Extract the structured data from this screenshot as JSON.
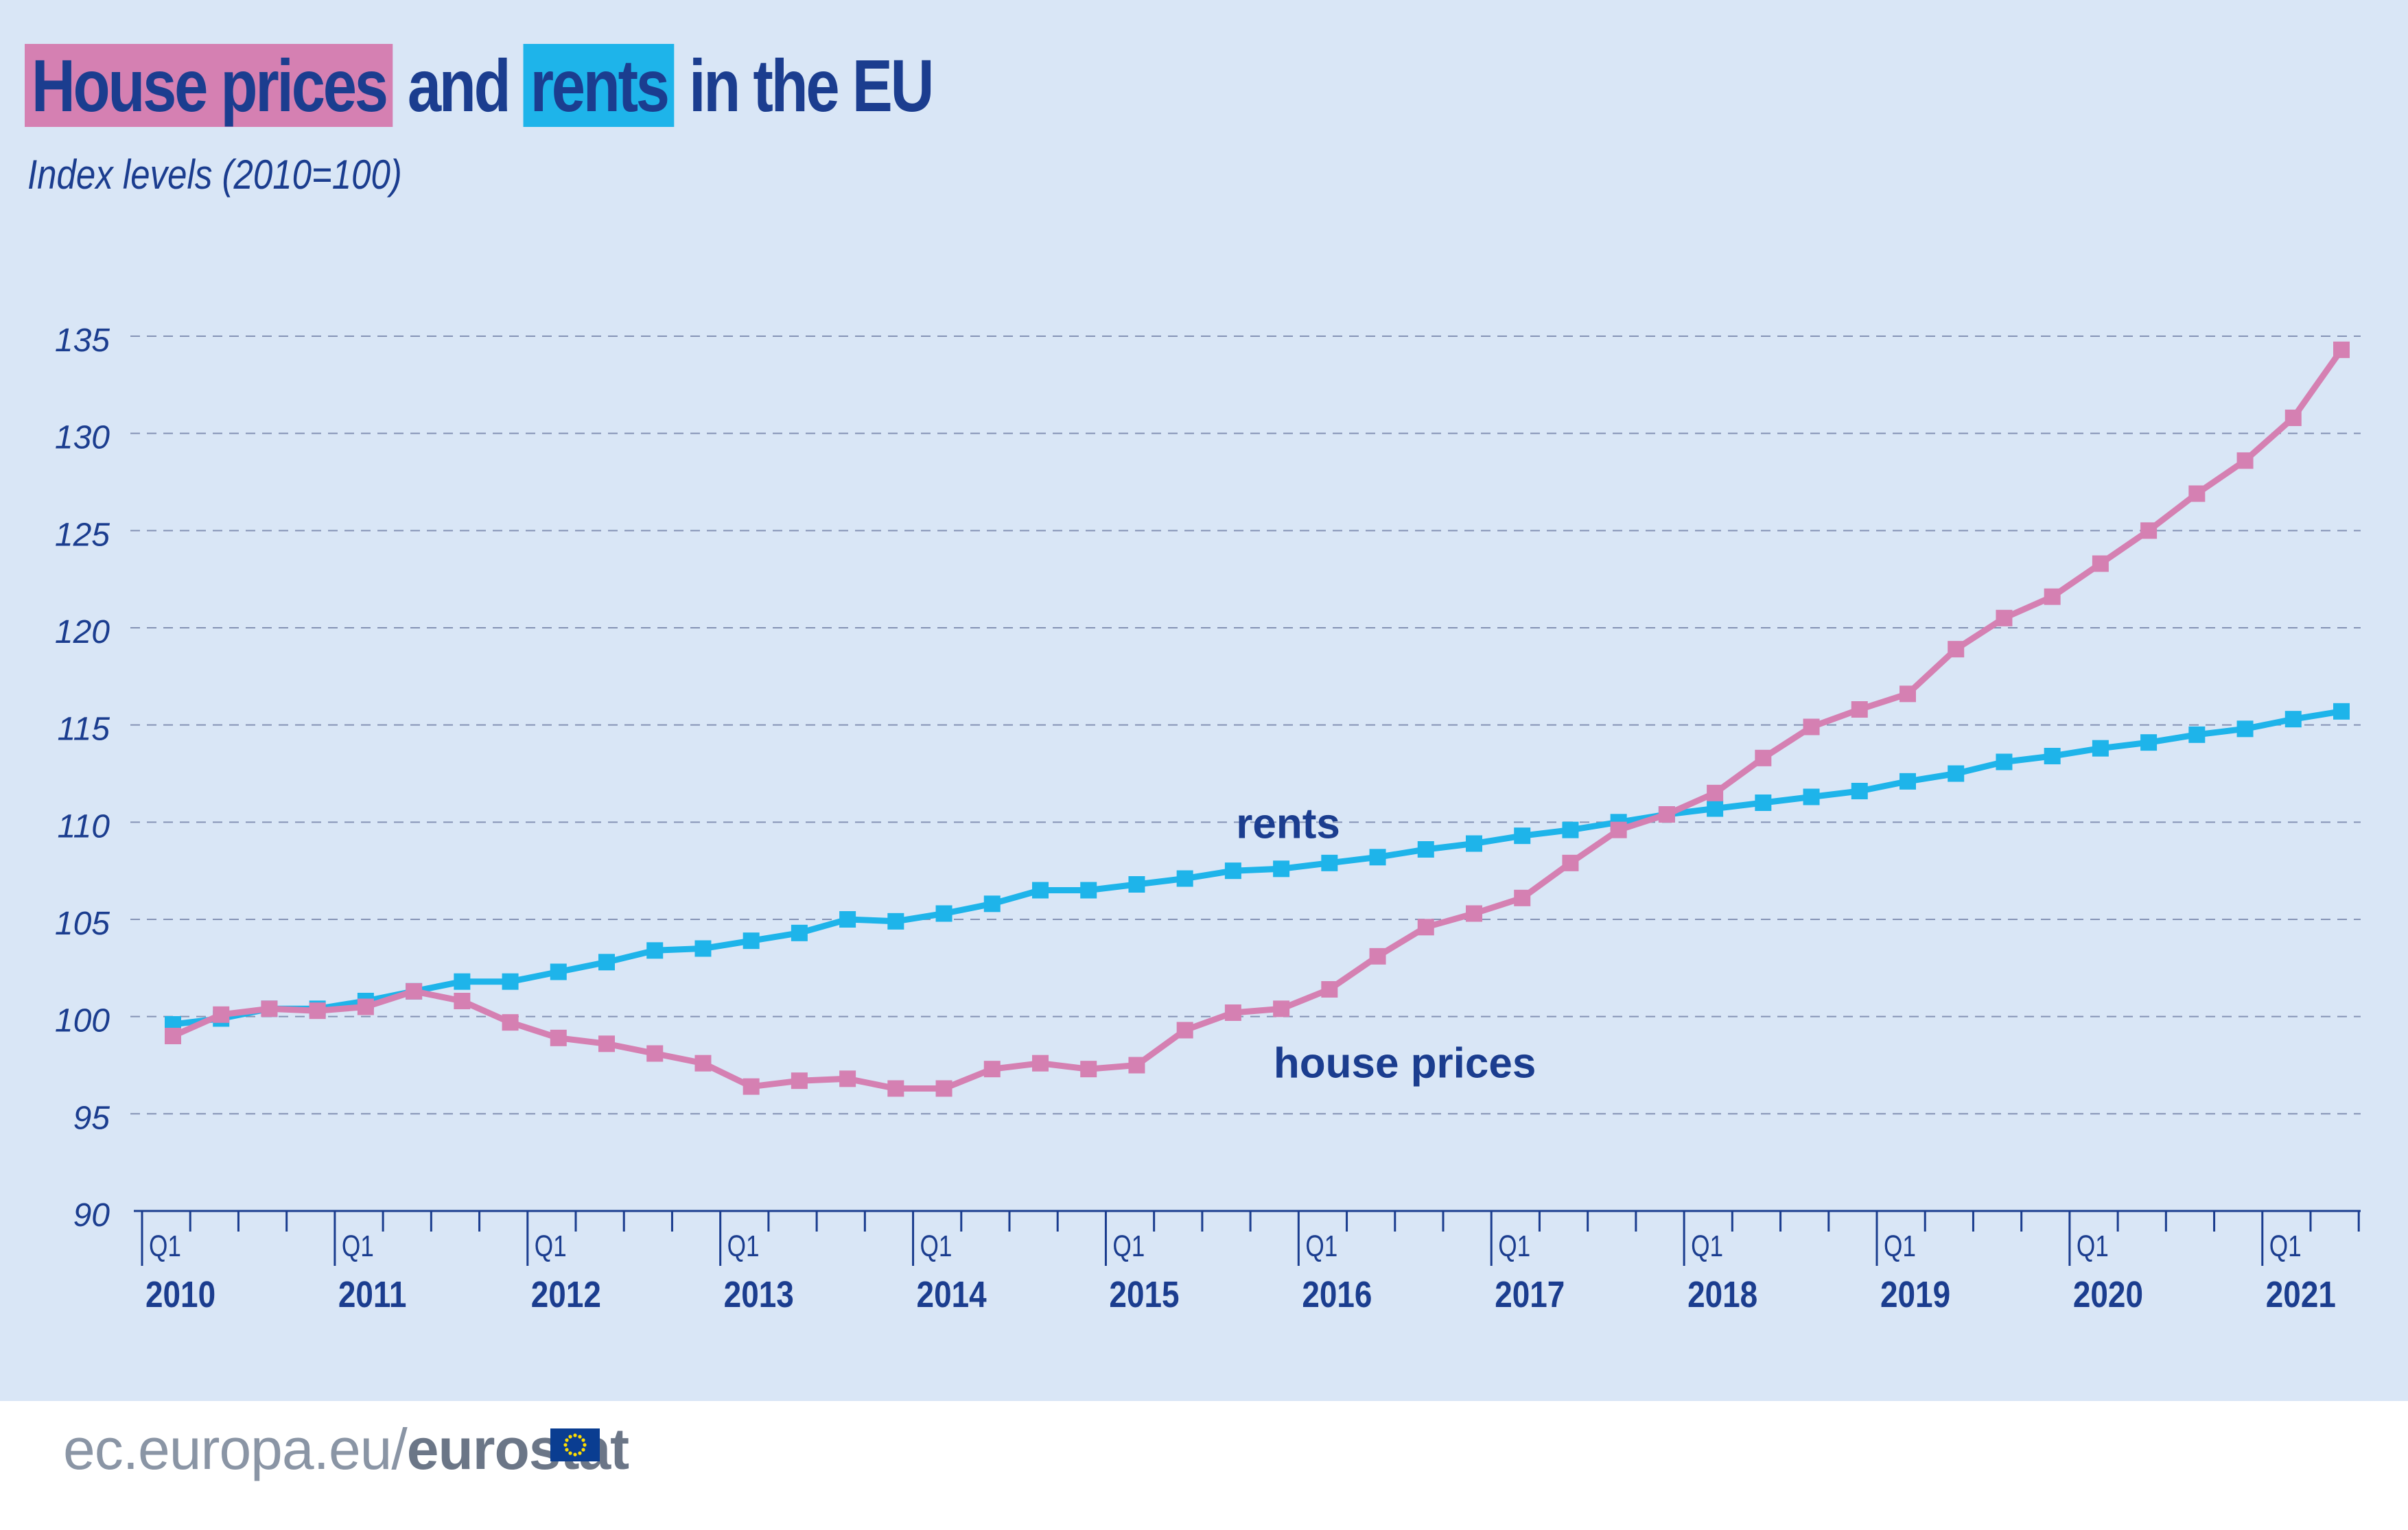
{
  "header": {
    "title_part1": "House prices",
    "title_part2": " and ",
    "title_part3": "rents",
    "title_part4": " in the EU",
    "subtitle": "Index levels (2010=100)"
  },
  "colors": {
    "background": "#d9e6f6",
    "title": "#1b3d8f",
    "house_prices": "#d580b2",
    "rents": "#1eb4ea",
    "grid": "#8593b5"
  },
  "footer": {
    "domain_text": "ec.europa.eu/",
    "brand_text": "eurostat",
    "flag_icon": "eu-flag-icon"
  },
  "chart_data": {
    "type": "line",
    "title": "House prices and rents in the EU",
    "subtitle": "Index levels (2010=100)",
    "xlabel": "",
    "ylabel": "",
    "ylim": [
      90,
      135
    ],
    "yticks": [
      90,
      95,
      100,
      105,
      110,
      115,
      120,
      125,
      130,
      135
    ],
    "grid": true,
    "x_quarters": [
      "2010Q1",
      "2010Q2",
      "2010Q3",
      "2010Q4",
      "2011Q1",
      "2011Q2",
      "2011Q3",
      "2011Q4",
      "2012Q1",
      "2012Q2",
      "2012Q3",
      "2012Q4",
      "2013Q1",
      "2013Q2",
      "2013Q3",
      "2013Q4",
      "2014Q1",
      "2014Q2",
      "2014Q3",
      "2014Q4",
      "2015Q1",
      "2015Q2",
      "2015Q3",
      "2015Q4",
      "2016Q1",
      "2016Q2",
      "2016Q3",
      "2016Q4",
      "2017Q1",
      "2017Q2",
      "2017Q3",
      "2017Q4",
      "2018Q1",
      "2018Q2",
      "2018Q3",
      "2018Q4",
      "2019Q1",
      "2019Q2",
      "2019Q3",
      "2019Q4",
      "2020Q1",
      "2020Q2",
      "2020Q3",
      "2020Q4",
      "2021Q1",
      "2021Q2"
    ],
    "x_ticks": [
      {
        "quarter": "Q1",
        "year": "2010"
      },
      {
        "quarter": "Q1",
        "year": "2011"
      },
      {
        "quarter": "Q1",
        "year": "2012"
      },
      {
        "quarter": "Q1",
        "year": "2013"
      },
      {
        "quarter": "Q1",
        "year": "2014"
      },
      {
        "quarter": "Q1",
        "year": "2015"
      },
      {
        "quarter": "Q1",
        "year": "2016"
      },
      {
        "quarter": "Q1",
        "year": "2017"
      },
      {
        "quarter": "Q1",
        "year": "2018"
      },
      {
        "quarter": "Q1",
        "year": "2019"
      },
      {
        "quarter": "Q1",
        "year": "2020"
      },
      {
        "quarter": "Q1",
        "year": "2021"
      }
    ],
    "series": [
      {
        "name": "rents",
        "color": "#1eb4ea",
        "values": [
          99.6,
          99.9,
          100.4,
          100.4,
          100.8,
          101.3,
          101.8,
          101.8,
          102.3,
          102.8,
          103.4,
          103.5,
          103.9,
          104.3,
          105.0,
          104.9,
          105.3,
          105.8,
          106.5,
          106.5,
          106.8,
          107.1,
          107.5,
          107.6,
          107.9,
          108.2,
          108.6,
          108.9,
          109.3,
          109.6,
          110.0,
          110.4,
          110.7,
          111.0,
          111.3,
          111.6,
          112.1,
          112.5,
          113.1,
          113.4,
          113.8,
          114.1,
          114.5,
          114.8,
          115.3,
          115.7
        ],
        "label_position_quarter": "2015Q4"
      },
      {
        "name": "house prices",
        "color": "#d580b2",
        "values": [
          99.0,
          100.1,
          100.4,
          100.3,
          100.5,
          101.3,
          100.8,
          99.7,
          98.9,
          98.6,
          98.1,
          97.6,
          96.4,
          96.7,
          96.8,
          96.3,
          96.3,
          97.3,
          97.6,
          97.3,
          97.5,
          99.3,
          100.2,
          100.4,
          101.4,
          103.1,
          104.6,
          105.3,
          106.1,
          107.9,
          109.6,
          110.4,
          111.5,
          113.3,
          114.9,
          115.8,
          116.6,
          118.9,
          120.5,
          121.6,
          123.3,
          125.0,
          126.9,
          128.6,
          130.8,
          134.3
        ],
        "label_position_quarter": "2015Q4"
      }
    ]
  }
}
